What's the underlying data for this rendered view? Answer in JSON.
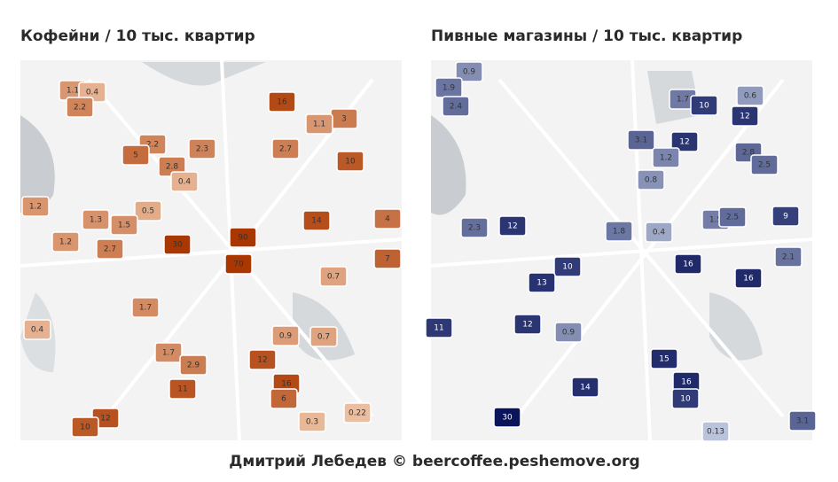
{
  "left_map": {
    "title": "Кофейни / 10 тыс. квартир",
    "labels": [
      1.1,
      0.4,
      2.2,
      16,
      3,
      1.1,
      2.2,
      5,
      2.3,
      2.8,
      2.7,
      10,
      0.4,
      1.2,
      1.3,
      0.5,
      1.5,
      1.2,
      2.7,
      30,
      90,
      70,
      14,
      4,
      7,
      0.7,
      0.4,
      1.7,
      2.9,
      11,
      16,
      12,
      10,
      0.22,
      0.3,
      6,
      1.7,
      0.9,
      0.7,
      12
    ]
  },
  "right_map": {
    "title": "Пивные магазины / 10 тыс. квартир",
    "labels": [
      0.9,
      1.9,
      2.4,
      1.7,
      10,
      12,
      0.6,
      12,
      3.1,
      1.2,
      2.8,
      2.5,
      0.8,
      1.5,
      2.5,
      9,
      2.1,
      16,
      16,
      12,
      2.3,
      1.8,
      0.4,
      10,
      13,
      11,
      12,
      15,
      16,
      10,
      14,
      30,
      0.13,
      3.1,
      0.9
    ]
  },
  "footer": "Дмитрий Лебедев © beercoffee.peshemove.org"
}
